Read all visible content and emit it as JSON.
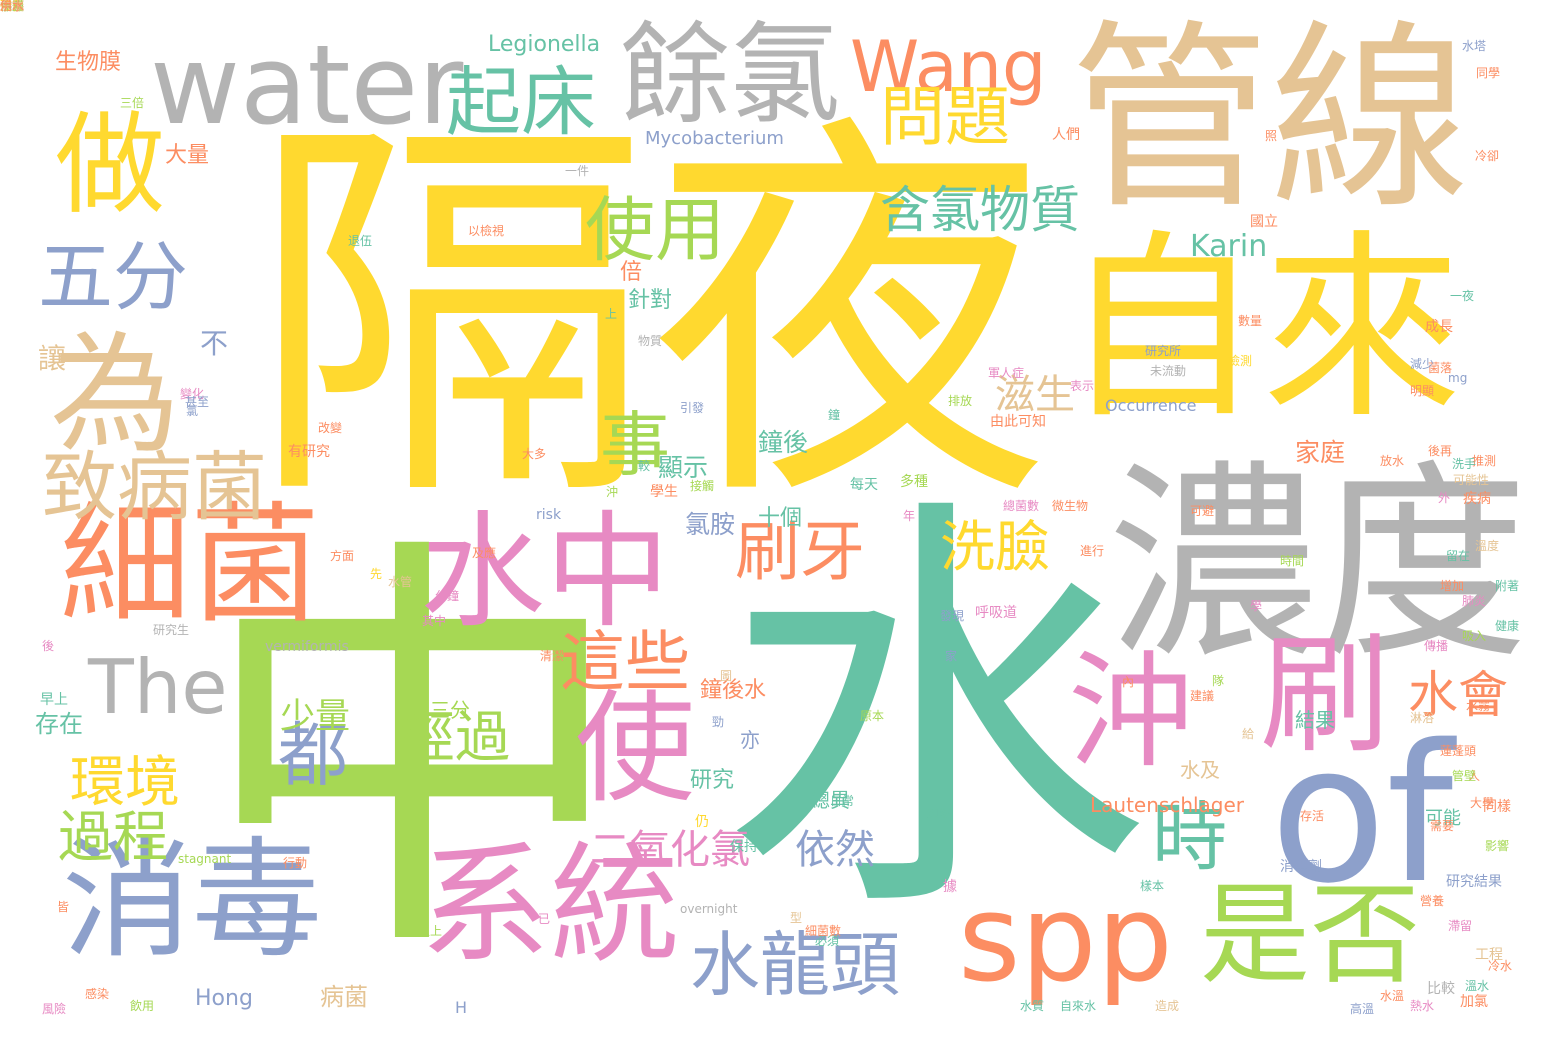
{
  "palette": {
    "yellow": "#ffd92f",
    "green": "#a6d854",
    "teal": "#66c2a5",
    "orange": "#fc8d62",
    "blue": "#8da0cb",
    "pink": "#e78ac3",
    "tan": "#e5c494",
    "gray": "#b3b3b3"
  },
  "words": [
    {
      "text": "隔夜",
      "color": "yellow"
    },
    {
      "text": "中",
      "color": "green"
    },
    {
      "text": "水",
      "color": "teal"
    },
    {
      "text": "管線",
      "color": "tan"
    },
    {
      "text": "自來",
      "color": "yellow"
    },
    {
      "text": "濃度",
      "color": "gray"
    },
    {
      "text": "water",
      "color": "gray"
    },
    {
      "text": "餘氯",
      "color": "gray"
    },
    {
      "text": "Wang",
      "color": "orange"
    },
    {
      "text": "of",
      "color": "blue"
    },
    {
      "text": "細菌",
      "color": "orange"
    },
    {
      "text": "消毒",
      "color": "blue"
    },
    {
      "text": "系統",
      "color": "pink"
    },
    {
      "text": "水中",
      "color": "pink"
    },
    {
      "text": "spp",
      "color": "orange"
    },
    {
      "text": "是否",
      "color": "green"
    },
    {
      "text": "刷",
      "color": "pink"
    },
    {
      "text": "沖",
      "color": "pink"
    },
    {
      "text": "為",
      "color": "tan"
    },
    {
      "text": "做",
      "color": "yellow"
    },
    {
      "text": "使",
      "color": "pink"
    },
    {
      "text": "起床",
      "color": "teal"
    },
    {
      "text": "五分",
      "color": "blue"
    },
    {
      "text": "問題",
      "color": "yellow"
    },
    {
      "text": "使用",
      "color": "green"
    },
    {
      "text": "含氯物質",
      "color": "teal"
    },
    {
      "text": "事",
      "color": "green"
    },
    {
      "text": "致病菌",
      "color": "tan"
    },
    {
      "text": "刷牙",
      "color": "orange"
    },
    {
      "text": "洗臉",
      "color": "yellow"
    },
    {
      "text": "這些",
      "color": "orange"
    },
    {
      "text": "The",
      "color": "gray"
    },
    {
      "text": "時",
      "color": "teal"
    },
    {
      "text": "環境",
      "color": "yellow"
    },
    {
      "text": "都",
      "color": "blue"
    },
    {
      "text": "經過",
      "color": "green"
    },
    {
      "text": "水會",
      "color": "orange"
    },
    {
      "text": "水龍頭",
      "color": "blue"
    },
    {
      "text": "過程",
      "color": "green"
    },
    {
      "text": "二氧化氯",
      "color": "pink"
    },
    {
      "text": "滋生",
      "color": "tan"
    },
    {
      "text": "Karin",
      "color": "teal"
    },
    {
      "text": "少量",
      "color": "green"
    },
    {
      "text": "依然",
      "color": "blue"
    },
    {
      "text": "Legionella",
      "color": "teal"
    },
    {
      "text": "Mycobacterium",
      "color": "blue"
    },
    {
      "text": "生物膜",
      "color": "orange"
    },
    {
      "text": "大量",
      "color": "orange"
    },
    {
      "text": "不",
      "color": "blue"
    },
    {
      "text": "讓",
      "color": "tan"
    },
    {
      "text": "針對",
      "color": "teal"
    },
    {
      "text": "倍",
      "color": "orange"
    },
    {
      "text": "鐘後",
      "color": "teal"
    },
    {
      "text": "家庭",
      "color": "orange"
    },
    {
      "text": "顯示",
      "color": "teal"
    },
    {
      "text": "氯胺",
      "color": "blue"
    },
    {
      "text": "十個",
      "color": "teal"
    },
    {
      "text": "Occurrence",
      "color": "blue"
    },
    {
      "text": "Lautenschlager",
      "color": "orange"
    },
    {
      "text": "結果",
      "color": "teal"
    },
    {
      "text": "水及",
      "color": "tan"
    },
    {
      "text": "研究",
      "color": "teal"
    },
    {
      "text": "亦",
      "color": "blue"
    },
    {
      "text": "鐘後水",
      "color": "orange"
    },
    {
      "text": "三分",
      "color": "green"
    },
    {
      "text": "存在",
      "color": "teal"
    },
    {
      "text": "總異",
      "color": "teal"
    },
    {
      "text": "Hong",
      "color": "blue"
    },
    {
      "text": "病菌",
      "color": "tan"
    },
    {
      "text": "vermiformis",
      "color": "gray"
    },
    {
      "text": "stagnant",
      "color": "green"
    },
    {
      "text": "overnight",
      "color": "gray"
    },
    {
      "text": "risk",
      "color": "blue"
    },
    {
      "text": "H",
      "color": "blue"
    },
    {
      "text": "mg",
      "color": "blue"
    },
    {
      "text": "大多",
      "color": "orange"
    },
    {
      "text": "學生",
      "color": "orange"
    },
    {
      "text": "每天",
      "color": "teal"
    },
    {
      "text": "多種",
      "color": "green"
    },
    {
      "text": "可能",
      "color": "teal"
    },
    {
      "text": "以檢視",
      "color": "orange"
    },
    {
      "text": "研究所",
      "color": "blue"
    },
    {
      "text": "由此可知",
      "color": "orange"
    },
    {
      "text": "軍人症",
      "color": "pink"
    },
    {
      "text": "變化",
      "color": "pink"
    },
    {
      "text": "有研究",
      "color": "orange"
    },
    {
      "text": "呼吸道",
      "color": "pink"
    },
    {
      "text": "研究生",
      "color": "gray"
    },
    {
      "text": "早上",
      "color": "teal"
    },
    {
      "text": "引發",
      "color": "blue"
    },
    {
      "text": "改變",
      "color": "orange"
    },
    {
      "text": "成長",
      "color": "orange"
    },
    {
      "text": "疾病",
      "color": "orange"
    },
    {
      "text": "國立",
      "color": "orange"
    },
    {
      "text": "同樣",
      "color": "orange"
    },
    {
      "text": "加氯",
      "color": "orange"
    },
    {
      "text": "比較",
      "color": "gray"
    },
    {
      "text": "工程",
      "color": "tan"
    },
    {
      "text": "人們",
      "color": "orange"
    },
    {
      "text": "一件",
      "color": "gray"
    },
    {
      "text": "三倍",
      "color": "green"
    },
    {
      "text": "水塔",
      "color": "blue"
    },
    {
      "text": "冷卻",
      "color": "orange"
    },
    {
      "text": "同學",
      "color": "orange"
    },
    {
      "text": "甚至",
      "color": "blue"
    },
    {
      "text": "退伍",
      "color": "teal"
    },
    {
      "text": "年",
      "color": "pink"
    },
    {
      "text": "外",
      "color": "pink"
    },
    {
      "text": "人",
      "color": "orange"
    },
    {
      "text": "內",
      "color": "orange"
    },
    {
      "text": "上",
      "color": "teal"
    },
    {
      "text": "沖",
      "color": "green"
    },
    {
      "text": "較",
      "color": "teal"
    },
    {
      "text": "氯",
      "color": "blue"
    },
    {
      "text": "先",
      "color": "yellow"
    },
    {
      "text": "家",
      "color": "blue"
    },
    {
      "text": "鐘",
      "color": "teal"
    },
    {
      "text": "皆",
      "color": "orange"
    },
    {
      "text": "照",
      "color": "orange"
    },
    {
      "text": "後",
      "color": "pink"
    },
    {
      "text": "隊",
      "color": "green"
    },
    {
      "text": "給",
      "color": "tan"
    },
    {
      "text": "圖",
      "color": "tan"
    },
    {
      "text": "已",
      "color": "pink"
    },
    {
      "text": "學",
      "color": "pink"
    },
    {
      "text": "型",
      "color": "tan"
    },
    {
      "text": "據",
      "color": "pink"
    },
    {
      "text": "勁",
      "color": "blue"
    },
    {
      "text": "仍",
      "color": "yellow"
    },
    {
      "text": "日常",
      "color": "teal"
    },
    {
      "text": "加熱",
      "color": "teal"
    },
    {
      "text": "行動",
      "color": "orange"
    },
    {
      "text": "保持",
      "color": "teal"
    },
    {
      "text": "必須",
      "color": "teal"
    },
    {
      "text": "消毒劑",
      "color": "blue"
    },
    {
      "text": "自來水",
      "color": "teal"
    },
    {
      "text": "水質",
      "color": "teal"
    },
    {
      "text": "研究結果",
      "color": "blue"
    },
    {
      "text": "接觸",
      "color": "green"
    },
    {
      "text": "推測",
      "color": "orange"
    },
    {
      "text": "可能性",
      "color": "tan"
    },
    {
      "text": "造成",
      "color": "tan"
    },
    {
      "text": "菌落",
      "color": "orange"
    },
    {
      "text": "總菌數",
      "color": "pink"
    },
    {
      "text": "影響",
      "color": "green"
    },
    {
      "text": "健康",
      "color": "teal"
    },
    {
      "text": "微生物",
      "color": "orange"
    },
    {
      "text": "細菌數",
      "color": "orange"
    },
    {
      "text": "溫度",
      "color": "tan"
    },
    {
      "text": "時間",
      "color": "green"
    },
    {
      "text": "風險",
      "color": "pink"
    },
    {
      "text": "感染",
      "color": "orange"
    },
    {
      "text": "飲用",
      "color": "green"
    },
    {
      "text": "水管",
      "color": "tan"
    },
    {
      "text": "分鐘",
      "color": "pink"
    },
    {
      "text": "方面",
      "color": "orange"
    },
    {
      "text": "及應",
      "color": "orange"
    },
    {
      "text": "附著",
      "color": "teal"
    },
    {
      "text": "清潔",
      "color": "orange"
    },
    {
      "text": "原本",
      "color": "green"
    },
    {
      "text": "未流動",
      "color": "gray"
    },
    {
      "text": "建議",
      "color": "orange"
    },
    {
      "text": "存活",
      "color": "orange"
    },
    {
      "text": "增加",
      "color": "orange"
    },
    {
      "text": "留在",
      "color": "teal"
    },
    {
      "text": "以上",
      "color": "green"
    },
    {
      "text": "其中",
      "color": "pink"
    },
    {
      "text": "需要",
      "color": "orange"
    },
    {
      "text": "物質",
      "color": "gray"
    },
    {
      "text": "表示",
      "color": "pink"
    },
    {
      "text": "發現",
      "color": "blue"
    },
    {
      "text": "檢測",
      "color": "yellow"
    },
    {
      "text": "樣本",
      "color": "teal"
    },
    {
      "text": "數量",
      "color": "orange"
    },
    {
      "text": "明顯",
      "color": "orange"
    },
    {
      "text": "減少",
      "color": "blue"
    },
    {
      "text": "排放",
      "color": "green"
    },
    {
      "text": "一夜",
      "color": "teal"
    },
    {
      "text": "放水",
      "color": "orange"
    },
    {
      "text": "後再",
      "color": "orange"
    },
    {
      "text": "洗手",
      "color": "teal"
    },
    {
      "text": "進行",
      "color": "orange"
    },
    {
      "text": "可避",
      "color": "orange"
    },
    {
      "text": "肺炎",
      "color": "pink"
    },
    {
      "text": "傳播",
      "color": "pink"
    },
    {
      "text": "吸入",
      "color": "green"
    },
    {
      "text": "水霧",
      "color": "orange"
    },
    {
      "text": "淋浴",
      "color": "tan"
    },
    {
      "text": "蓮蓬頭",
      "color": "orange"
    },
    {
      "text": "管壁",
      "color": "green"
    },
    {
      "text": "大學",
      "color": "orange"
    },
    {
      "text": "營養",
      "color": "orange"
    },
    {
      "text": "滯留",
      "color": "pink"
    },
    {
      "text": "溫水",
      "color": "teal"
    },
    {
      "text": "冷水",
      "color": "orange"
    },
    {
      "text": "熱水",
      "color": "pink"
    },
    {
      "text": "水溫",
      "color": "orange"
    },
    {
      "text": "高溫",
      "color": "blue"
    },
    {
      "text": "作用",
      "color": "teal"
    },
    {
      "text": "消耗",
      "color": "orange"
    },
    {
      "text": "殘留",
      "color": "yellow"
    },
    {
      "text": "保護",
      "color": "green"
    },
    {
      "text": "水源",
      "color": "green"
    },
    {
      "text": "供水",
      "color": "orange"
    },
    {
      "text": "末端",
      "color": "tan"
    },
    {
      "text": "用水",
      "color": "orange"
    }
  ]
}
